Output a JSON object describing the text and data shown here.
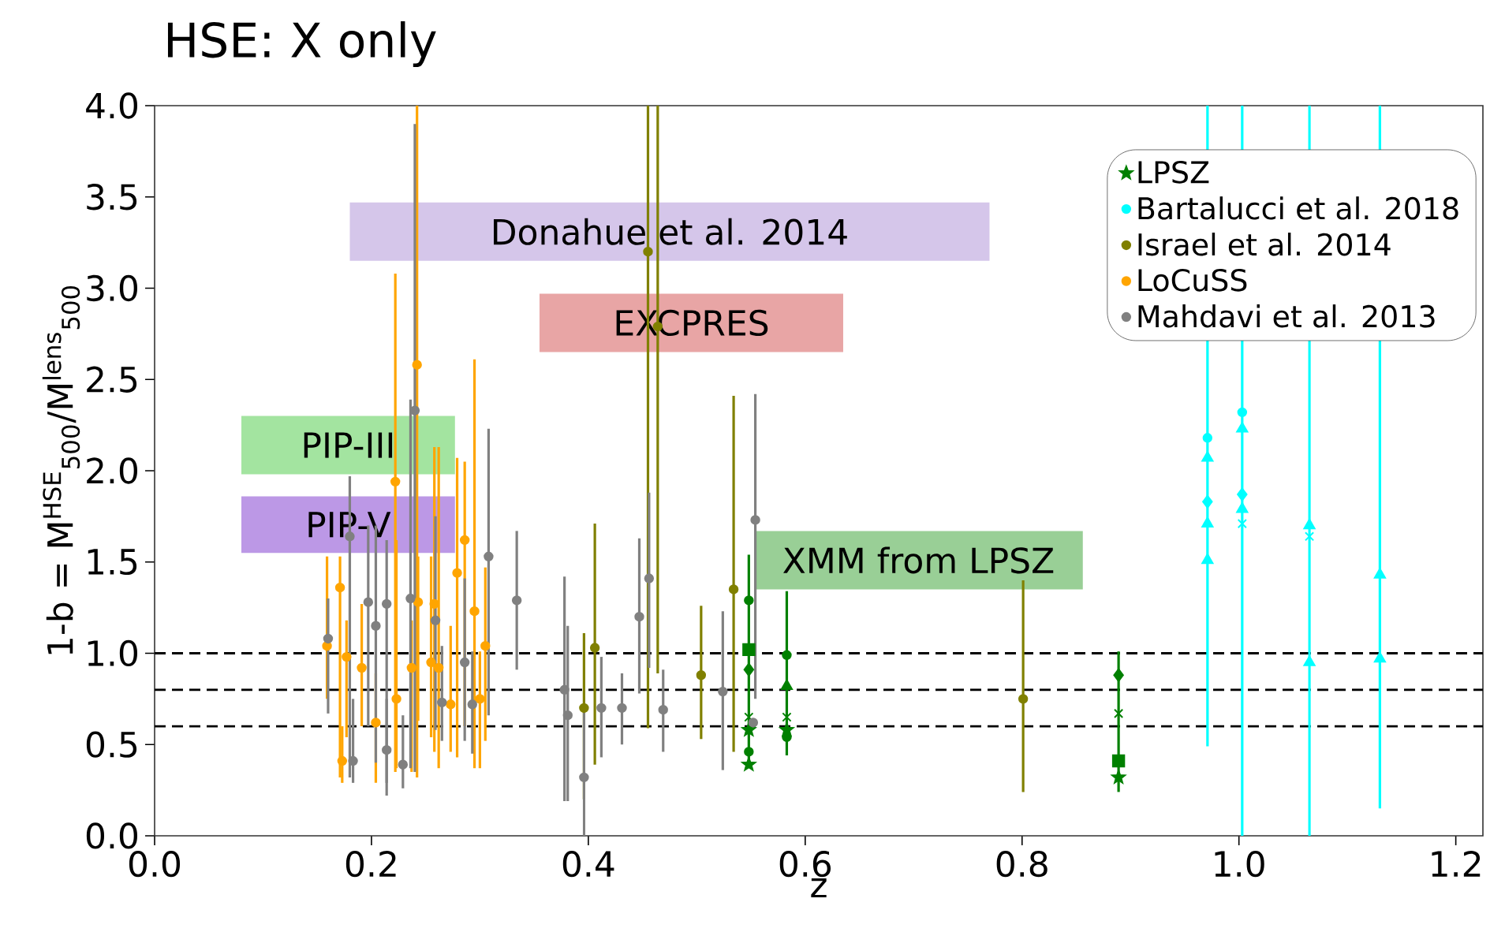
{
  "chart_data": {
    "type": "scatter",
    "title": "HSE: X only",
    "xlabel": "z",
    "ylabel": "1-b = M$^{HSE}$$_{500}$/M$^{lens}$$_{500}$",
    "xlim": [
      0,
      1.225
    ],
    "ylim": [
      0,
      4
    ],
    "xticks": [
      {
        "value": 0,
        "label": "0.0"
      },
      {
        "value": 0.2,
        "label": "0.2"
      },
      {
        "value": 0.4,
        "label": "0.4"
      },
      {
        "value": 0.6,
        "label": "0.6"
      },
      {
        "value": 0.8,
        "label": "0.8"
      },
      {
        "value": 1.0,
        "label": "1.0"
      },
      {
        "value": 1.2,
        "label": "1.2"
      }
    ],
    "yticks": [
      {
        "value": 0,
        "label": "0.0"
      },
      {
        "value": 0.5,
        "label": "0.5"
      },
      {
        "value": 1.0,
        "label": "1.0"
      },
      {
        "value": 1.5,
        "label": "1.5"
      },
      {
        "value": 2.0,
        "label": "2.0"
      },
      {
        "value": 2.5,
        "label": "2.5"
      },
      {
        "value": 3.0,
        "label": "3.0"
      },
      {
        "value": 3.5,
        "label": "3.5"
      },
      {
        "value": 4.0,
        "label": "4.0"
      }
    ],
    "legend": "top right",
    "annotations": [
      "Donahue et al. 2014",
      "EXCPRES",
      "PIP-III",
      "PIP-V",
      "XMM from LPSZ"
    ],
    "ref_lines": [
      {
        "axis": "y",
        "value": 1.0,
        "color": "#000000",
        "line_style": "dashed"
      },
      {
        "axis": "y",
        "value": 0.8,
        "color": "#000000",
        "line_style": "dashed"
      },
      {
        "axis": "y",
        "value": 0.6,
        "color": "#000000",
        "line_style": "dashed"
      }
    ],
    "series": [
      {
        "name": "LPSZ",
        "color": "#008000",
        "marker": "star",
        "x": [
          0.548,
          0.548,
          0.583,
          0.889
        ],
        "values": [
          0.58,
          0.39,
          0.58,
          0.32
        ]
      },
      {
        "color": "#008000",
        "marker": "circle",
        "x": [
          0.548,
          0.548,
          0.583,
          0.583
        ],
        "values": [
          1.29,
          0.46,
          0.99,
          0.54
        ],
        "errors": [
          [
            0.37,
            1.54
          ],
          null,
          [
            0.44,
            1.34
          ],
          null
        ]
      },
      {
        "color": "#008000",
        "marker": "square",
        "x": [
          0.548,
          0.889
        ],
        "values": [
          1.02,
          0.41
        ]
      },
      {
        "color": "#008000",
        "marker": "diamond",
        "x": [
          0.548,
          0.889
        ],
        "values": [
          0.91,
          0.88
        ],
        "errors": [
          null,
          [
            0.24,
            1.01
          ]
        ]
      },
      {
        "color": "#008000",
        "marker": "triangle",
        "x": [
          0.583
        ],
        "values": [
          0.82
        ]
      },
      {
        "color": "#008000",
        "marker": "cross",
        "x": [
          0.548,
          0.583,
          0.889
        ],
        "values": [
          0.65,
          0.65,
          0.67
        ]
      },
      {
        "name": "Bartalucci et al. 2018",
        "color": "#00ffff",
        "marker": "circle",
        "x": [
          0.971,
          1.003
        ],
        "values": [
          2.18,
          2.32
        ],
        "errors": [
          [
            0.49,
            4.0
          ],
          [
            0.0,
            4.0
          ]
        ]
      },
      {
        "color": "#00ffff",
        "marker": "diamond",
        "x": [
          0.971,
          1.003
        ],
        "values": [
          1.83,
          1.87
        ]
      },
      {
        "color": "#00ffff",
        "marker": "triangle",
        "x": [
          0.971,
          1.003,
          1.065,
          1.13,
          1.13,
          0.971,
          1.065,
          0.971,
          1.003
        ],
        "values": [
          1.71,
          2.23,
          1.7,
          1.43,
          0.97,
          1.51,
          0.95,
          2.07,
          1.79
        ],
        "errors": [
          null,
          null,
          [
            0.0,
            4.0
          ],
          [
            0.15,
            4.0
          ],
          null,
          null,
          null,
          null,
          null
        ]
      },
      {
        "color": "#00ffff",
        "marker": "cross",
        "x": [
          1.003,
          1.065
        ],
        "values": [
          1.71,
          1.64
        ]
      },
      {
        "name": "Israel et al. 2014",
        "color": "#808000",
        "marker": "circle",
        "x": [
          0.396,
          0.406,
          0.455,
          0.464,
          0.504,
          0.534,
          0.801
        ],
        "values": [
          0.7,
          1.03,
          3.2,
          2.79,
          0.88,
          1.35,
          0.75
        ],
        "errors": [
          [
            0.2,
            1.11
          ],
          [
            0.39,
            1.71
          ],
          [
            0.59,
            4.0
          ],
          [
            0.89,
            4.0
          ],
          [
            0.53,
            1.26
          ],
          [
            0.46,
            2.41
          ],
          [
            0.24,
            1.4
          ]
        ]
      },
      {
        "name": "LoCuSS",
        "color": "#ffa500",
        "marker": "circle",
        "x": [
          0.242,
          0.222,
          0.295,
          0.171,
          0.159,
          0.258,
          0.262,
          0.279,
          0.286,
          0.177,
          0.173,
          0.191,
          0.204,
          0.223,
          0.237,
          0.243,
          0.255,
          0.273,
          0.305,
          0.3
        ],
        "values": [
          2.58,
          1.94,
          1.23,
          1.36,
          1.04,
          1.27,
          0.92,
          1.44,
          1.62,
          0.98,
          0.41,
          0.92,
          0.62,
          0.75,
          0.92,
          1.28,
          0.95,
          0.72,
          1.04,
          0.75
        ],
        "errors": [
          [
            0.32,
            4.0
          ],
          [
            0.35,
            3.08
          ],
          [
            0.37,
            2.61
          ],
          [
            0.32,
            1.53
          ],
          [
            0.75,
            1.53
          ],
          [
            0.46,
            2.13
          ],
          [
            0.37,
            2.13
          ],
          [
            0.43,
            2.07
          ],
          [
            0.6,
            2.05
          ],
          [
            0.54,
            1.18
          ],
          [
            0.29,
            0.6
          ],
          [
            0.6,
            1.27
          ],
          [
            0.29,
            0.89
          ],
          [
            0.37,
            1.62
          ],
          [
            0.35,
            1.18
          ],
          [
            0.63,
            1.53
          ],
          [
            0.54,
            1.53
          ],
          [
            0.46,
            1.15
          ],
          [
            0.52,
            1.47
          ],
          [
            0.37,
            1.01
          ]
        ]
      },
      {
        "name": "Mahdavi et al. 2013",
        "color": "#808080",
        "marker": "circle",
        "x": [
          0.24,
          0.18,
          0.308,
          0.334,
          0.16,
          0.197,
          0.214,
          0.236,
          0.259,
          0.183,
          0.214,
          0.229,
          0.286,
          0.265,
          0.204,
          0.293,
          0.378,
          0.381,
          0.396,
          0.412,
          0.431,
          0.447,
          0.456,
          0.469,
          0.524,
          0.554,
          0.552
        ],
        "values": [
          2.33,
          1.64,
          1.53,
          1.29,
          1.08,
          1.28,
          1.27,
          1.3,
          1.18,
          0.41,
          0.47,
          0.39,
          0.95,
          0.73,
          1.15,
          0.72,
          0.8,
          0.66,
          0.32,
          0.7,
          0.7,
          1.2,
          1.41,
          0.69,
          0.79,
          1.73,
          0.62
        ],
        "errors": [
          [
            0.35,
            3.9
          ],
          [
            0.32,
            1.97
          ],
          [
            0.66,
            2.23
          ],
          [
            0.91,
            1.67
          ],
          [
            0.67,
            1.3
          ],
          [
            0.6,
            1.7
          ],
          [
            0.22,
            1.62
          ],
          [
            0.37,
            2.39
          ],
          [
            0.58,
            1.75
          ],
          [
            0.29,
            0.75
          ],
          [
            0.29,
            0.75
          ],
          [
            0.26,
            0.66
          ],
          [
            0.52,
            1.41
          ],
          [
            0.52,
            1.04
          ],
          [
            0.4,
            1.7
          ],
          [
            0.45,
            1.01
          ],
          [
            0.19,
            1.42
          ],
          [
            0.19,
            1.15
          ],
          [
            0.0,
            0.69
          ],
          [
            0.43,
            0.98
          ],
          [
            0.5,
            0.89
          ],
          [
            0.78,
            1.63
          ],
          [
            0.92,
            1.88
          ],
          [
            0.46,
            0.91
          ],
          [
            0.36,
            1.23
          ],
          [
            0.75,
            2.42
          ],
          null
        ]
      }
    ]
  }
}
